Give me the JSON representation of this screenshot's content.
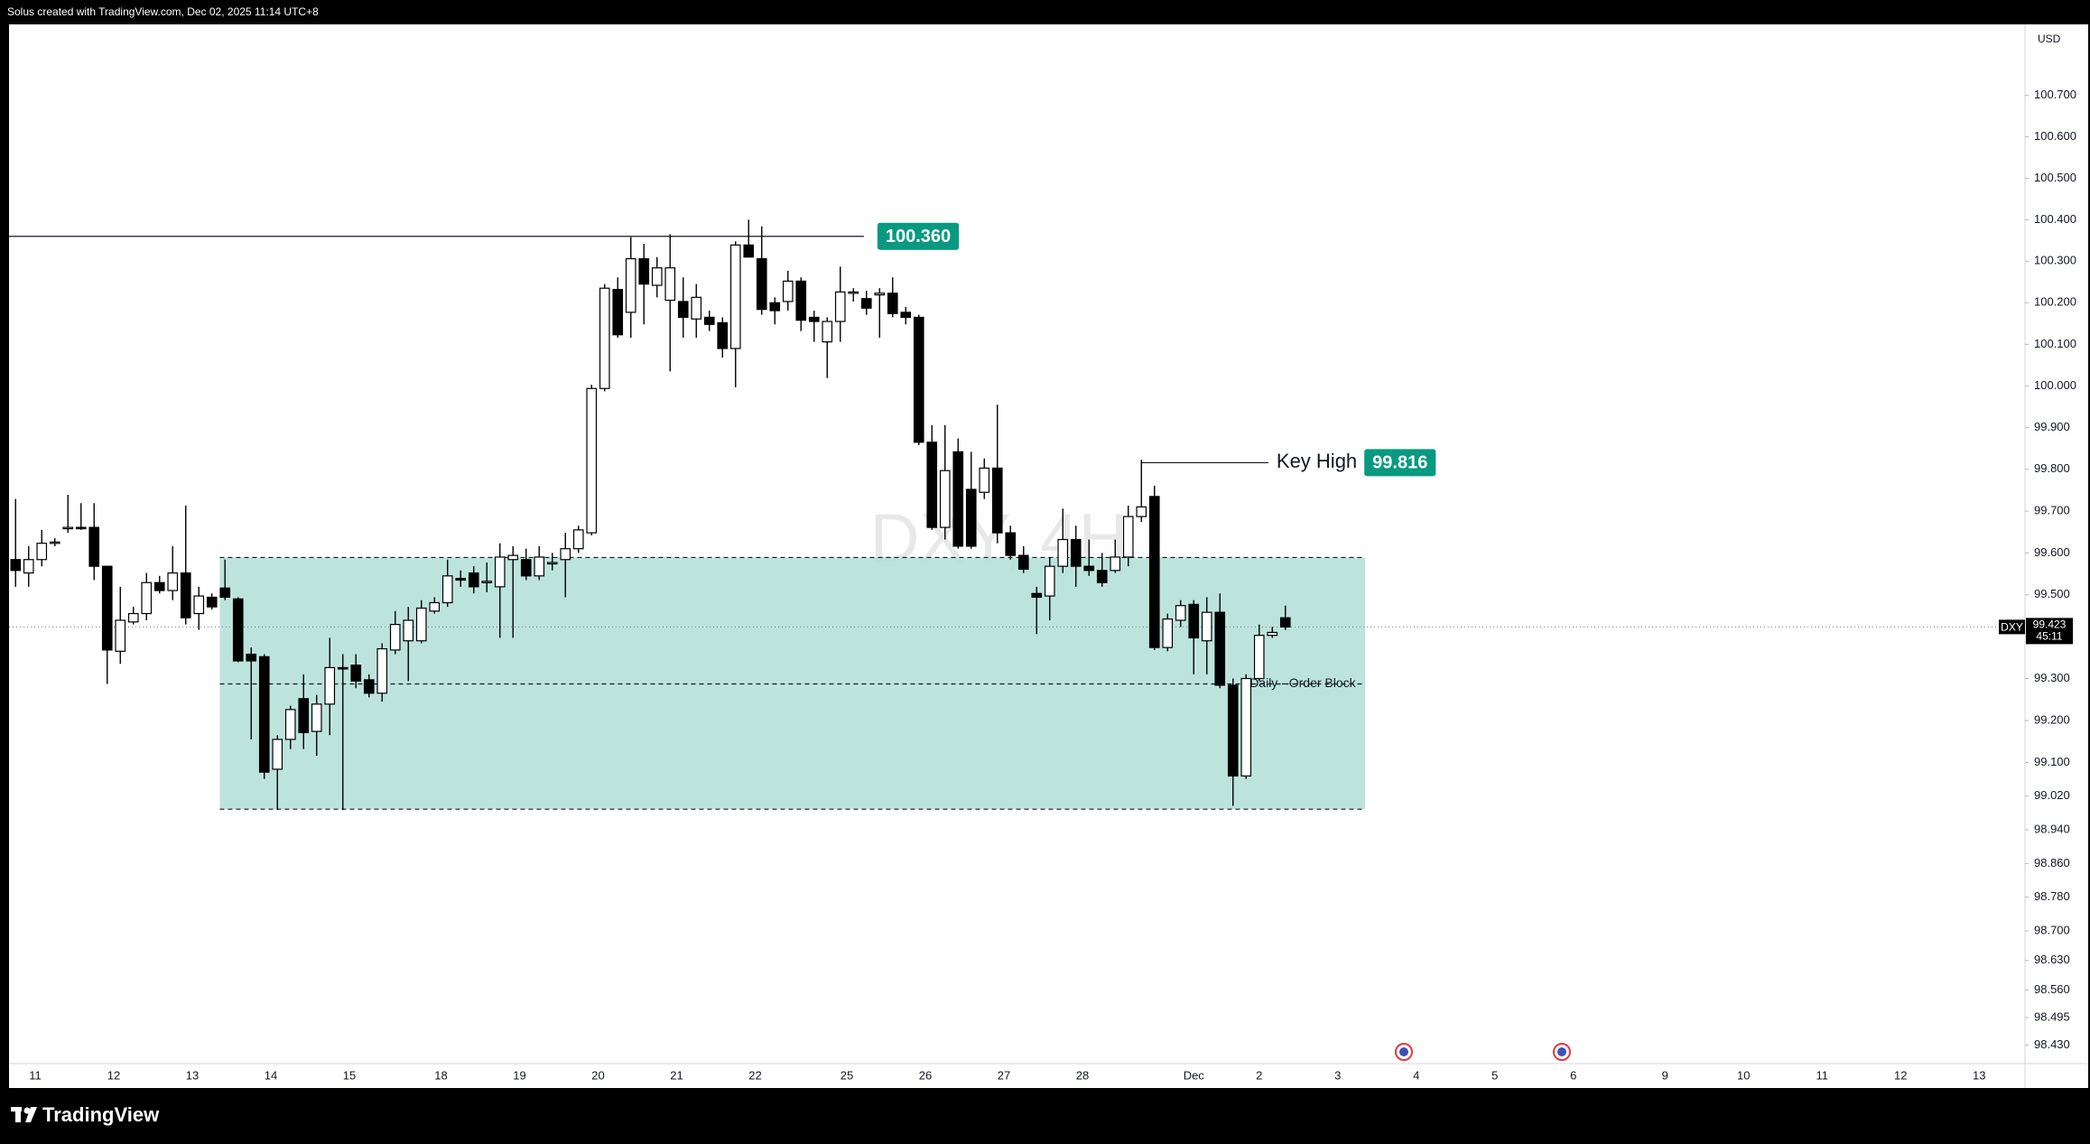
{
  "header": {
    "title": "Solus created with TradingView.com, Dec 02, 2025 11:14 UTC+8"
  },
  "footer": {
    "brand": "TradingView"
  },
  "chart_data": {
    "type": "candlestick",
    "watermark": "DXY, 4H",
    "currency": "USD",
    "log_scale": true,
    "grid": false,
    "bull_color": "#ffffff",
    "bear_color": "#000000",
    "ylim": [
      98.386,
      100.872
    ],
    "yticks": [
      {
        "value": 100.7,
        "label": "100.700"
      },
      {
        "value": 100.6,
        "label": "100.600"
      },
      {
        "value": 100.5,
        "label": "100.500"
      },
      {
        "value": 100.4,
        "label": "100.400"
      },
      {
        "value": 100.3,
        "label": "100.300"
      },
      {
        "value": 100.2,
        "label": "100.200"
      },
      {
        "value": 100.1,
        "label": "100.100"
      },
      {
        "value": 100.0,
        "label": "100.000"
      },
      {
        "value": 99.9,
        "label": "99.900"
      },
      {
        "value": 99.8,
        "label": "99.800"
      },
      {
        "value": 99.7,
        "label": "99.700"
      },
      {
        "value": 99.6,
        "label": "99.600"
      },
      {
        "value": 99.5,
        "label": "99.500"
      },
      {
        "value": 99.3,
        "label": "99.300"
      },
      {
        "value": 99.2,
        "label": "99.200"
      },
      {
        "value": 99.1,
        "label": "99.100"
      },
      {
        "value": 99.02,
        "label": "99.020"
      },
      {
        "value": 98.94,
        "label": "98.940"
      },
      {
        "value": 98.86,
        "label": "98.860"
      },
      {
        "value": 98.78,
        "label": "98.780"
      },
      {
        "value": 98.7,
        "label": "98.700"
      },
      {
        "value": 98.63,
        "label": "98.630"
      },
      {
        "value": 98.56,
        "label": "98.560"
      },
      {
        "value": 98.495,
        "label": "98.495"
      },
      {
        "value": 98.43,
        "label": "98.430"
      }
    ],
    "xlim": [
      0,
      154
    ],
    "xticks": [
      {
        "value": 2,
        "label": "11"
      },
      {
        "value": 8,
        "label": "12"
      },
      {
        "value": 14,
        "label": "13"
      },
      {
        "value": 20,
        "label": "14"
      },
      {
        "value": 26,
        "label": "15"
      },
      {
        "value": 33,
        "label": "18"
      },
      {
        "value": 39,
        "label": "19"
      },
      {
        "value": 45,
        "label": "20"
      },
      {
        "value": 51,
        "label": "21"
      },
      {
        "value": 57,
        "label": "22"
      },
      {
        "value": 64,
        "label": "25"
      },
      {
        "value": 70,
        "label": "26"
      },
      {
        "value": 76,
        "label": "27"
      },
      {
        "value": 82,
        "label": "28"
      },
      {
        "value": 90.5,
        "label": "Dec"
      },
      {
        "value": 95.5,
        "label": "2"
      },
      {
        "value": 101.5,
        "label": "3"
      },
      {
        "value": 107.5,
        "label": "4"
      },
      {
        "value": 113.5,
        "label": "5"
      },
      {
        "value": 119.5,
        "label": "6"
      },
      {
        "value": 126.5,
        "label": "9"
      },
      {
        "value": 132.5,
        "label": "10"
      },
      {
        "value": 138.5,
        "label": "11"
      },
      {
        "value": 144.5,
        "label": "12"
      },
      {
        "value": 150.5,
        "label": "13"
      }
    ],
    "ohlc": [
      [
        99.584,
        99.729,
        99.519,
        99.558
      ],
      [
        99.552,
        99.616,
        99.519,
        99.584
      ],
      [
        99.584,
        99.655,
        99.568,
        99.623
      ],
      [
        99.623,
        99.635,
        99.616,
        99.626
      ],
      [
        99.658,
        99.739,
        99.648,
        99.661
      ],
      [
        99.661,
        99.719,
        99.655,
        99.658
      ],
      [
        99.661,
        99.719,
        99.535,
        99.568
      ],
      [
        99.568,
        99.568,
        99.287,
        99.368
      ],
      [
        99.365,
        99.519,
        99.335,
        99.439
      ],
      [
        99.435,
        99.471,
        99.429,
        99.455
      ],
      [
        99.455,
        99.552,
        99.439,
        99.529
      ],
      [
        99.529,
        99.545,
        99.503,
        99.51
      ],
      [
        99.51,
        99.616,
        99.487,
        99.552
      ],
      [
        99.552,
        99.713,
        99.429,
        99.445
      ],
      [
        99.455,
        99.519,
        99.416,
        99.497
      ],
      [
        99.494,
        99.503,
        99.465,
        99.471
      ],
      [
        99.516,
        99.584,
        99.487,
        99.494
      ],
      [
        99.49,
        99.494,
        99.339,
        99.342
      ],
      [
        99.358,
        99.374,
        99.155,
        99.342
      ],
      [
        99.352,
        99.358,
        99.061,
        99.077
      ],
      [
        99.084,
        99.165,
        98.987,
        99.155
      ],
      [
        99.155,
        99.235,
        99.132,
        99.226
      ],
      [
        99.252,
        99.31,
        99.132,
        99.171
      ],
      [
        99.174,
        99.261,
        99.116,
        99.239
      ],
      [
        99.239,
        99.397,
        99.165,
        99.326
      ],
      [
        99.326,
        99.358,
        98.987,
        99.323
      ],
      [
        99.332,
        99.358,
        99.277,
        99.294
      ],
      [
        99.297,
        99.31,
        99.255,
        99.265
      ],
      [
        99.265,
        99.384,
        99.245,
        99.371
      ],
      [
        99.368,
        99.461,
        99.358,
        99.429
      ],
      [
        99.39,
        99.471,
        99.294,
        99.439
      ],
      [
        99.39,
        99.487,
        99.384,
        99.468
      ],
      [
        99.461,
        99.494,
        99.455,
        99.481
      ],
      [
        99.481,
        99.584,
        99.471,
        99.545
      ],
      [
        99.539,
        99.558,
        99.519,
        99.535
      ],
      [
        99.552,
        99.568,
        99.503,
        99.519
      ],
      [
        99.529,
        99.577,
        99.506,
        99.532
      ],
      [
        99.519,
        99.623,
        99.397,
        99.59
      ],
      [
        99.584,
        99.616,
        99.397,
        99.594
      ],
      [
        99.584,
        99.61,
        99.535,
        99.545
      ],
      [
        99.545,
        99.616,
        99.535,
        99.59
      ],
      [
        99.574,
        99.6,
        99.558,
        99.577
      ],
      [
        99.584,
        99.648,
        99.494,
        99.61
      ],
      [
        99.61,
        99.665,
        99.6,
        99.655
      ],
      [
        99.648,
        100.003,
        99.642,
        99.994
      ],
      [
        99.994,
        100.245,
        99.987,
        100.235
      ],
      [
        100.232,
        100.261,
        100.116,
        100.123
      ],
      [
        100.177,
        100.358,
        100.116,
        100.306
      ],
      [
        100.306,
        100.342,
        100.148,
        100.245
      ],
      [
        100.242,
        100.31,
        100.213,
        100.284
      ],
      [
        100.206,
        100.365,
        100.035,
        100.284
      ],
      [
        100.203,
        100.261,
        100.116,
        100.165
      ],
      [
        100.161,
        100.245,
        100.116,
        100.213
      ],
      [
        100.165,
        100.181,
        100.132,
        100.148
      ],
      [
        100.152,
        100.165,
        100.068,
        100.09
      ],
      [
        100.09,
        100.348,
        99.997,
        100.339
      ],
      [
        100.339,
        100.4,
        100.31,
        100.31
      ],
      [
        100.306,
        100.384,
        100.171,
        100.184
      ],
      [
        100.2,
        100.213,
        100.148,
        100.181
      ],
      [
        100.203,
        100.277,
        100.181,
        100.252
      ],
      [
        100.252,
        100.261,
        100.132,
        100.158
      ],
      [
        100.165,
        100.181,
        100.106,
        100.155
      ],
      [
        100.106,
        100.165,
        100.019,
        100.155
      ],
      [
        100.155,
        100.287,
        100.106,
        100.226
      ],
      [
        100.223,
        100.235,
        100.203,
        100.226
      ],
      [
        100.21,
        100.229,
        100.171,
        100.187
      ],
      [
        100.219,
        100.235,
        100.116,
        100.223
      ],
      [
        100.223,
        100.261,
        100.165,
        100.174
      ],
      [
        100.177,
        100.19,
        100.148,
        100.165
      ],
      [
        100.165,
        100.171,
        99.858,
        99.865
      ],
      [
        99.865,
        99.906,
        99.655,
        99.661
      ],
      [
        99.661,
        99.906,
        99.632,
        99.797
      ],
      [
        99.842,
        99.874,
        99.61,
        99.616
      ],
      [
        99.752,
        99.842,
        99.61,
        99.616
      ],
      [
        99.745,
        99.826,
        99.729,
        99.803
      ],
      [
        99.803,
        99.955,
        99.623,
        99.648
      ],
      [
        99.648,
        99.665,
        99.584,
        99.594
      ],
      [
        99.594,
        99.616,
        99.552,
        99.561
      ],
      [
        99.503,
        99.519,
        99.406,
        99.494
      ],
      [
        99.497,
        99.59,
        99.439,
        99.568
      ],
      [
        99.568,
        99.706,
        99.552,
        99.632
      ],
      [
        99.632,
        99.665,
        99.519,
        99.568
      ],
      [
        99.568,
        99.632,
        99.545,
        99.558
      ],
      [
        99.558,
        99.6,
        99.519,
        99.529
      ],
      [
        99.558,
        99.632,
        99.552,
        99.59
      ],
      [
        99.59,
        99.713,
        99.568,
        99.687
      ],
      [
        99.687,
        99.823,
        99.674,
        99.71
      ],
      [
        99.735,
        99.761,
        99.368,
        99.374
      ],
      [
        99.374,
        99.455,
        99.365,
        99.442
      ],
      [
        99.439,
        99.487,
        99.423,
        99.474
      ],
      [
        99.477,
        99.487,
        99.31,
        99.397
      ],
      [
        99.39,
        99.494,
        99.31,
        99.458
      ],
      [
        99.458,
        99.503,
        99.277,
        99.284
      ],
      [
        99.284,
        99.3,
        98.997,
        99.068
      ],
      [
        99.068,
        99.31,
        99.061,
        99.3
      ],
      [
        99.3,
        99.429,
        99.294,
        99.403
      ],
      [
        99.403,
        99.423,
        99.397,
        99.41
      ],
      [
        99.445,
        99.474,
        99.416,
        99.423
      ]
    ],
    "levels": [
      {
        "value": 100.36,
        "label": "100.360",
        "x_start": 0,
        "x_end": 65.3,
        "color": "#089981"
      },
      {
        "value": 99.816,
        "name": "Key High",
        "x_start": 86.5,
        "x_end": 96.2,
        "color": "#089981"
      }
    ],
    "zones": [
      {
        "label": "Daily - Order Block",
        "top": 99.589,
        "mid": 99.287,
        "bottom": 98.989,
        "x_start": 16.1,
        "x_end": 103.6,
        "color": "#b2dfd6"
      }
    ],
    "last_price": {
      "symbol": "DXY",
      "value": 99.423,
      "countdown": "45:11"
    }
  }
}
